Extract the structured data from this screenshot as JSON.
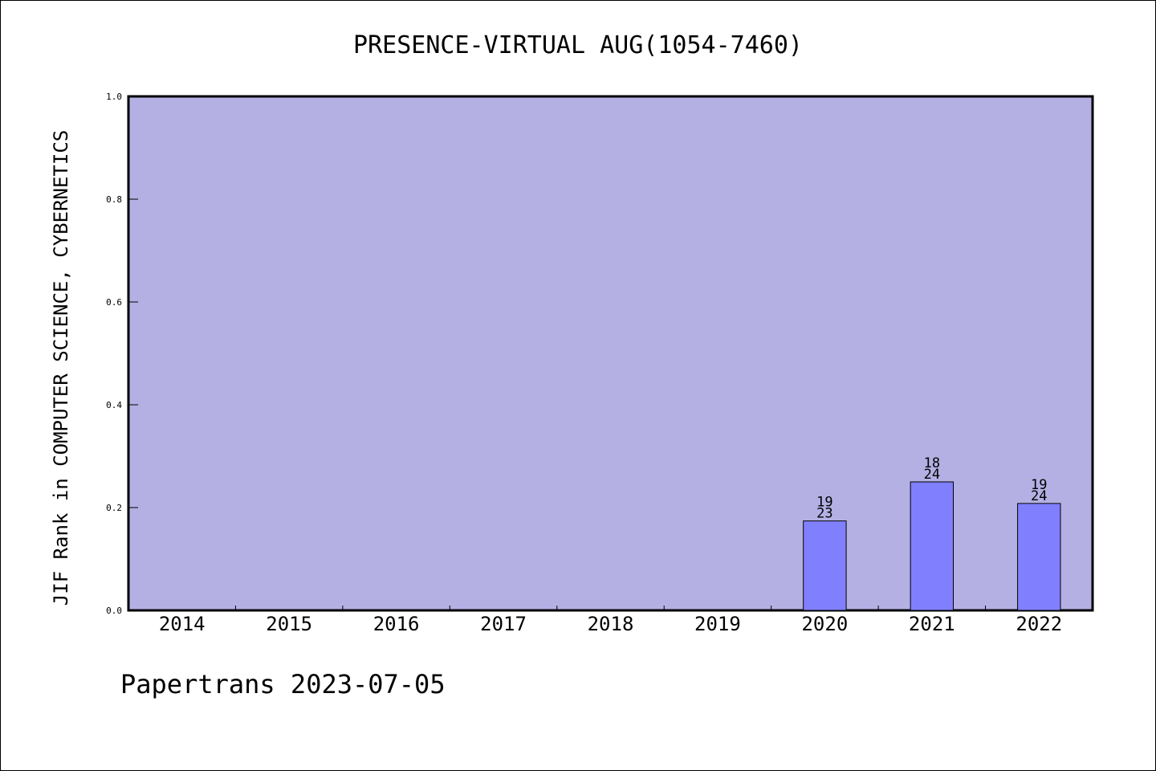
{
  "footer": "Papertrans 2023-07-05",
  "chart_data": {
    "type": "bar",
    "title": "PRESENCE-VIRTUAL AUG(1054-7460)",
    "xlabel": "",
    "ylabel": "JIF Rank in COMPUTER SCIENCE, CYBERNETICS",
    "ylim": [
      0,
      1.0
    ],
    "yticks": [
      "0.0",
      "0.2",
      "0.4",
      "0.6",
      "0.8",
      "1.0"
    ],
    "categories": [
      "2014",
      "2015",
      "2016",
      "2017",
      "2018",
      "2019",
      "2020",
      "2021",
      "2022"
    ],
    "values": [
      null,
      null,
      null,
      null,
      null,
      null,
      0.174,
      0.25,
      0.208
    ],
    "rank_labels": [
      null,
      null,
      null,
      null,
      null,
      null,
      [
        "19",
        "23"
      ],
      [
        "18",
        "24"
      ],
      [
        "19",
        "24"
      ]
    ],
    "grid": false,
    "colors": {
      "plot_background": "#b5b0e3",
      "bar": "#8080ff",
      "axis": "#000000"
    }
  }
}
